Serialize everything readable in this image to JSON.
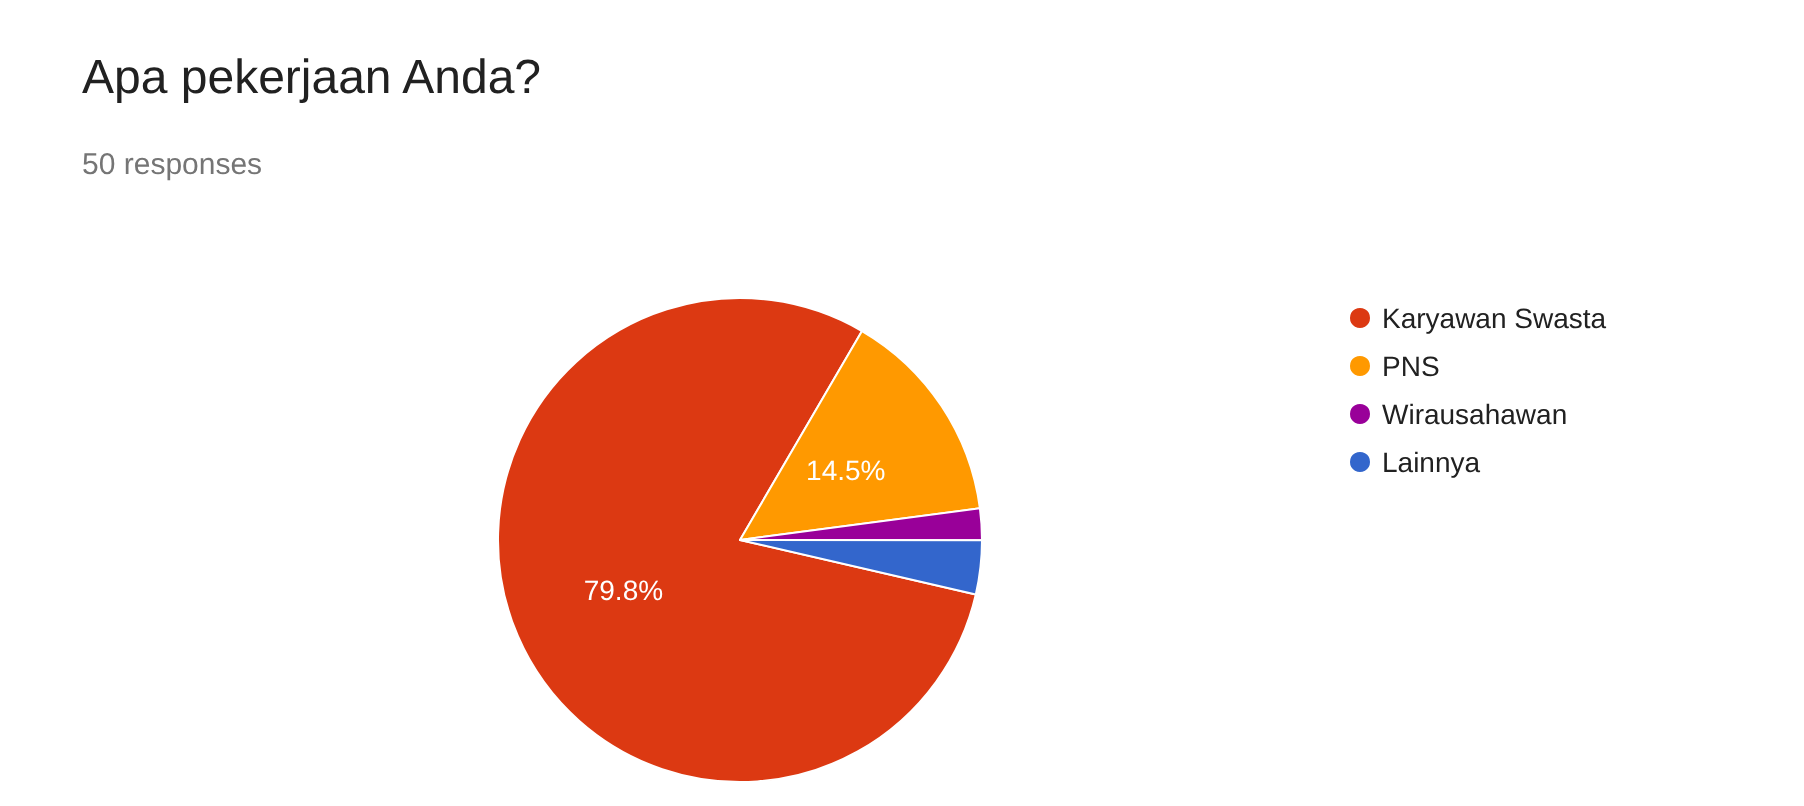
{
  "chart_data": {
    "type": "pie",
    "title": "Apa pekerjaan Anda?",
    "subtitle": "50 responses",
    "categories": [
      "Karyawan Swasta",
      "PNS",
      "Wirausahawan",
      "Lainnya"
    ],
    "values": [
      79.8,
      14.5,
      2.1,
      3.6
    ],
    "colors": [
      "#dc3912",
      "#ff9900",
      "#990099",
      "#3366cc"
    ],
    "value_labels": [
      "79.8%",
      "14.5%",
      null,
      null
    ],
    "legend": "right"
  }
}
